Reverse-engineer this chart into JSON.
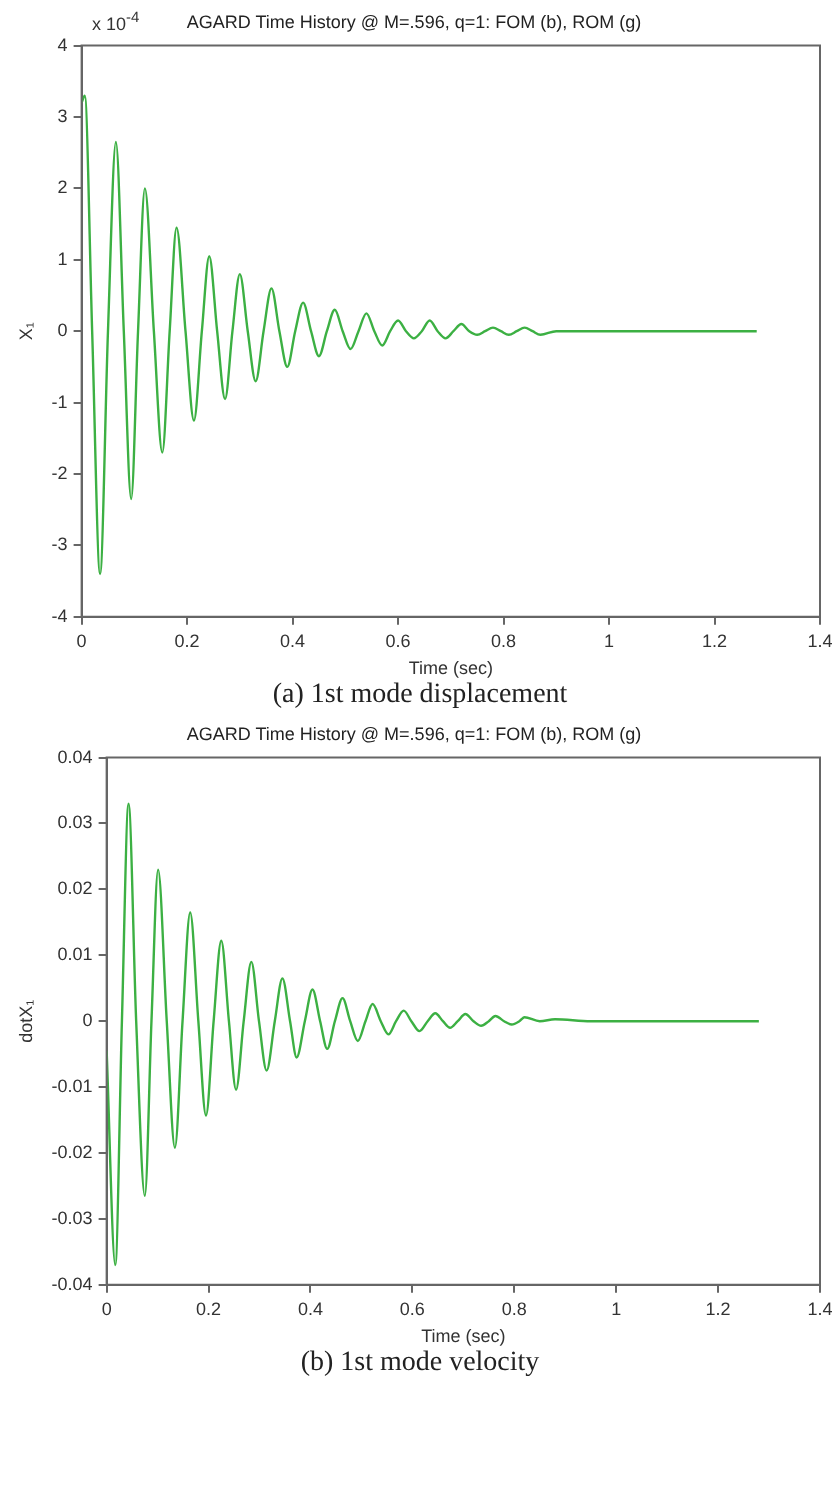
{
  "chart_data": [
    {
      "type": "line",
      "title": "AGARD Time History @ M=.596, q=1: FOM (b), ROM (g)",
      "xlabel": "Time (sec)",
      "ylabel": "X₁",
      "annotations": [
        "x 10$^{-4}$",
        "(a)    1st mode displacement"
      ],
      "xlim": [
        0,
        1.4
      ],
      "xticks": [
        0,
        0.2,
        0.4,
        0.6,
        0.8,
        1,
        1.2,
        1.4
      ],
      "ylim": [
        -4,
        4
      ],
      "yticks": [
        -4,
        -3,
        -2,
        -1,
        0,
        1,
        2,
        3,
        4
      ],
      "grid": false,
      "legend": false,
      "series": [
        {
          "color": "#3cb043",
          "x": [
            0,
            0.006,
            0.02,
            0.035,
            0.05,
            0.065,
            0.08,
            0.094,
            0.107,
            0.12,
            0.137,
            0.153,
            0.167,
            0.18,
            0.197,
            0.213,
            0.228,
            0.242,
            0.257,
            0.272,
            0.286,
            0.3,
            0.315,
            0.33,
            0.345,
            0.36,
            0.375,
            0.39,
            0.405,
            0.42,
            0.435,
            0.45,
            0.465,
            0.48,
            0.495,
            0.51,
            0.525,
            0.54,
            0.555,
            0.57,
            0.585,
            0.6,
            0.615,
            0.63,
            0.645,
            0.66,
            0.675,
            0.69,
            0.705,
            0.72,
            0.735,
            0.75,
            0.765,
            0.78,
            0.795,
            0.81,
            0.825,
            0.84,
            0.855,
            0.87,
            0.9,
            1.28
          ],
          "values": [
            3.2,
            3.3,
            0,
            -3.4,
            0,
            2.65,
            0,
            -2.35,
            0,
            2,
            0,
            -1.7,
            0,
            1.45,
            0,
            -1.25,
            0,
            1.05,
            0,
            -0.95,
            0,
            0.8,
            0,
            -0.7,
            0,
            0.6,
            0,
            -0.5,
            0,
            0.4,
            0,
            -0.35,
            0,
            0.3,
            0,
            -0.25,
            0,
            0.25,
            0,
            -0.2,
            0,
            0.15,
            0,
            -0.1,
            0,
            0.15,
            0,
            -0.1,
            0,
            0.1,
            0,
            -0.05,
            0,
            0.05,
            0,
            -0.05,
            0,
            0.05,
            0,
            -0.05,
            0,
            0
          ]
        }
      ]
    },
    {
      "type": "line",
      "title": "AGARD Time History @ M=.596, q=1: FOM (b), ROM (g)",
      "xlabel": "Time (sec)",
      "ylabel": "dotX₁",
      "annotations": [
        "(b)    1st mode velocity"
      ],
      "xlim": [
        0,
        1.4
      ],
      "xticks": [
        0,
        0.2,
        0.4,
        0.6,
        0.8,
        1,
        1.2,
        1.4
      ],
      "ylim": [
        -0.04,
        0.04
      ],
      "yticks": [
        -0.04,
        -0.03,
        -0.02,
        -0.01,
        0,
        0.01,
        0.02,
        0.03,
        0.04
      ],
      "grid": false,
      "legend": false,
      "series": [
        {
          "color": "#3cb043",
          "x": [
            0,
            0.017,
            0.03,
            0.043,
            0.058,
            0.075,
            0.088,
            0.101,
            0.118,
            0.134,
            0.149,
            0.164,
            0.18,
            0.195,
            0.21,
            0.225,
            0.24,
            0.254,
            0.269,
            0.284,
            0.299,
            0.314,
            0.33,
            0.345,
            0.36,
            0.373,
            0.389,
            0.404,
            0.419,
            0.433,
            0.448,
            0.463,
            0.478,
            0.493,
            0.508,
            0.522,
            0.538,
            0.553,
            0.568,
            0.583,
            0.598,
            0.614,
            0.63,
            0.645,
            0.66,
            0.674,
            0.689,
            0.704,
            0.72,
            0.735,
            0.75,
            0.763,
            0.78,
            0.795,
            0.81,
            0.82,
            0.85,
            0.88,
            0.95,
            1.28
          ],
          "values": [
            -0.0045,
            -0.037,
            0,
            0.033,
            0,
            -0.0265,
            0,
            0.023,
            0,
            -0.0192,
            0,
            0.0165,
            0,
            -0.0143,
            0,
            0.0122,
            0,
            -0.0104,
            0,
            0.009,
            0,
            -0.0075,
            0,
            0.0065,
            0,
            -0.0055,
            0,
            0.0048,
            0,
            -0.0042,
            0,
            0.0035,
            0,
            -0.003,
            0,
            0.0026,
            0,
            -0.002,
            0,
            0.0016,
            0,
            -0.0015,
            0,
            0.0012,
            0,
            -0.001,
            0,
            0.0011,
            0,
            -0.0007,
            0,
            0.0008,
            0,
            -0.0005,
            0,
            0.0006,
            0,
            0.0003,
            0,
            0
          ]
        }
      ]
    }
  ]
}
